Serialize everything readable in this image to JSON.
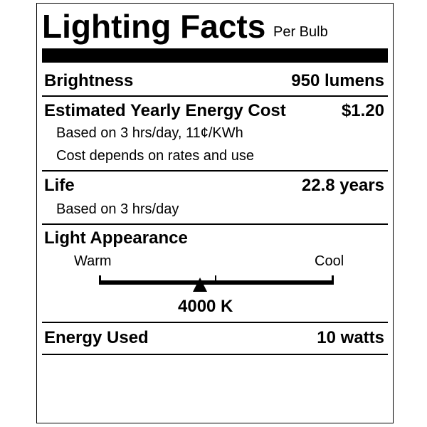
{
  "header": {
    "title": "Lighting Facts",
    "subtitle": "Per Bulb"
  },
  "brightness": {
    "label": "Brightness",
    "value": "950 lumens"
  },
  "cost": {
    "label": "Estimated Yearly Energy Cost",
    "value": "$1.20",
    "note1": "Based on 3 hrs/day, 11¢/KWh",
    "note2": "Cost depends on rates and use"
  },
  "life": {
    "label": "Life",
    "value": "22.8 years",
    "note": "Based on 3 hrs/day"
  },
  "appearance": {
    "label": "Light Appearance",
    "warm_label": "Warm",
    "cool_label": "Cool",
    "value": "4000 K",
    "marker_fraction": 0.43
  },
  "energy": {
    "label": "Energy Used",
    "value": "10 watts"
  }
}
